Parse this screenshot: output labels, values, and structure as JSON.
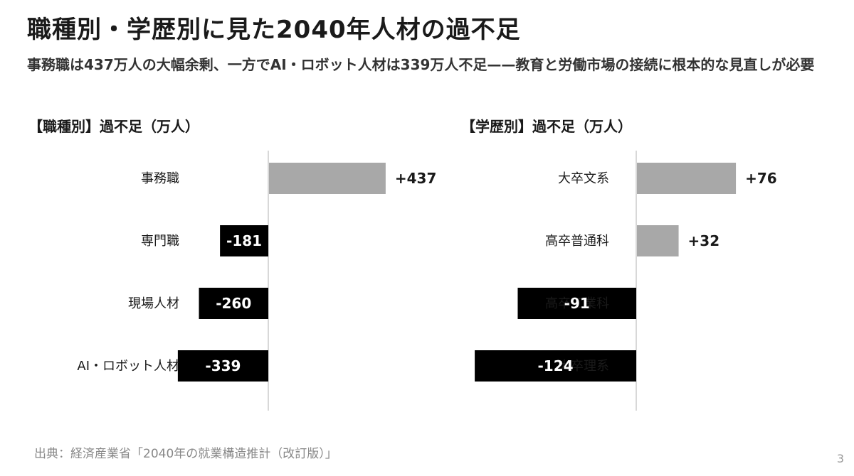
{
  "title": "職種別・学歴別に見た2040年人材の過不足",
  "subtitle": "事務職は437万人の大幅余剰、一方でAI・ロボット人材は339万人不足——教育と労働市場の接続に根本的な見直しが必要",
  "source": "出典：経済産業省「2040年の就業構造推計（改訂版）」",
  "page_number": "3",
  "colors": {
    "surplus": "#a8a8a8",
    "shortage": "#000000",
    "axis": "#cccccc",
    "label_on_dark": "#ffffff",
    "label_dark": "#1a1a1a"
  },
  "chart_data": [
    {
      "type": "bar",
      "orientation": "horizontal",
      "title": "【職種別】過不足（万人）",
      "categories": [
        "事務職",
        "専門職",
        "現場人材",
        "AI・ロボット人材"
      ],
      "values": [
        437,
        -181,
        -260,
        -339
      ],
      "value_labels": [
        "+437",
        "-181",
        "-260",
        "-339"
      ],
      "xlim": [
        -339,
        437
      ],
      "grid": false,
      "legend": "none"
    },
    {
      "type": "bar",
      "orientation": "horizontal",
      "title": "【学歴別】過不足（万人）",
      "categories": [
        "大卒文系",
        "高卒普通科",
        "高卒工業科",
        "大卒理系"
      ],
      "values": [
        76,
        32,
        -91,
        -124
      ],
      "value_labels": [
        "+76",
        "+32",
        "-91",
        "-124"
      ],
      "xlim": [
        -124,
        76
      ],
      "grid": false,
      "legend": "none"
    }
  ]
}
